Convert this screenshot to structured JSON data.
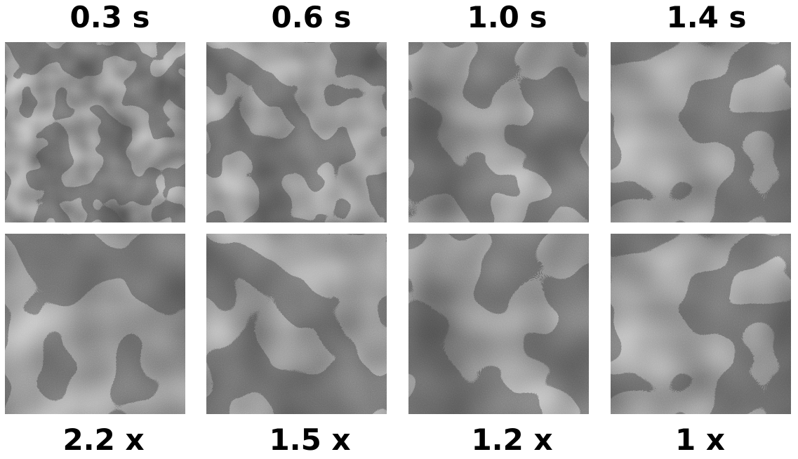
{
  "top_labels": [
    "0.3 s",
    "0.6 s",
    "1.0 s",
    "1.4 s"
  ],
  "bottom_labels": [
    "2.2 x",
    "1.5 x",
    "1.2 x",
    "1 x"
  ],
  "colors": {
    "light_phase": "#b9b9b9",
    "dark_phase": "#474747",
    "background": "#ffffff"
  },
  "panels": [
    {
      "row": "top",
      "index": 0,
      "feature_scale": 0.022,
      "seed": 3
    },
    {
      "row": "top",
      "index": 1,
      "feature_scale": 0.016,
      "seed": 7
    },
    {
      "row": "top",
      "index": 2,
      "feature_scale": 0.012,
      "seed": 11
    },
    {
      "row": "top",
      "index": 3,
      "feature_scale": 0.01,
      "seed": 13
    },
    {
      "row": "bottom",
      "index": 0,
      "feature_scale": 0.01,
      "seed": 3
    },
    {
      "row": "bottom",
      "index": 1,
      "feature_scale": 0.011,
      "seed": 7
    },
    {
      "row": "bottom",
      "index": 2,
      "feature_scale": 0.01,
      "seed": 11
    },
    {
      "row": "bottom",
      "index": 3,
      "feature_scale": 0.01,
      "seed": 13
    }
  ]
}
